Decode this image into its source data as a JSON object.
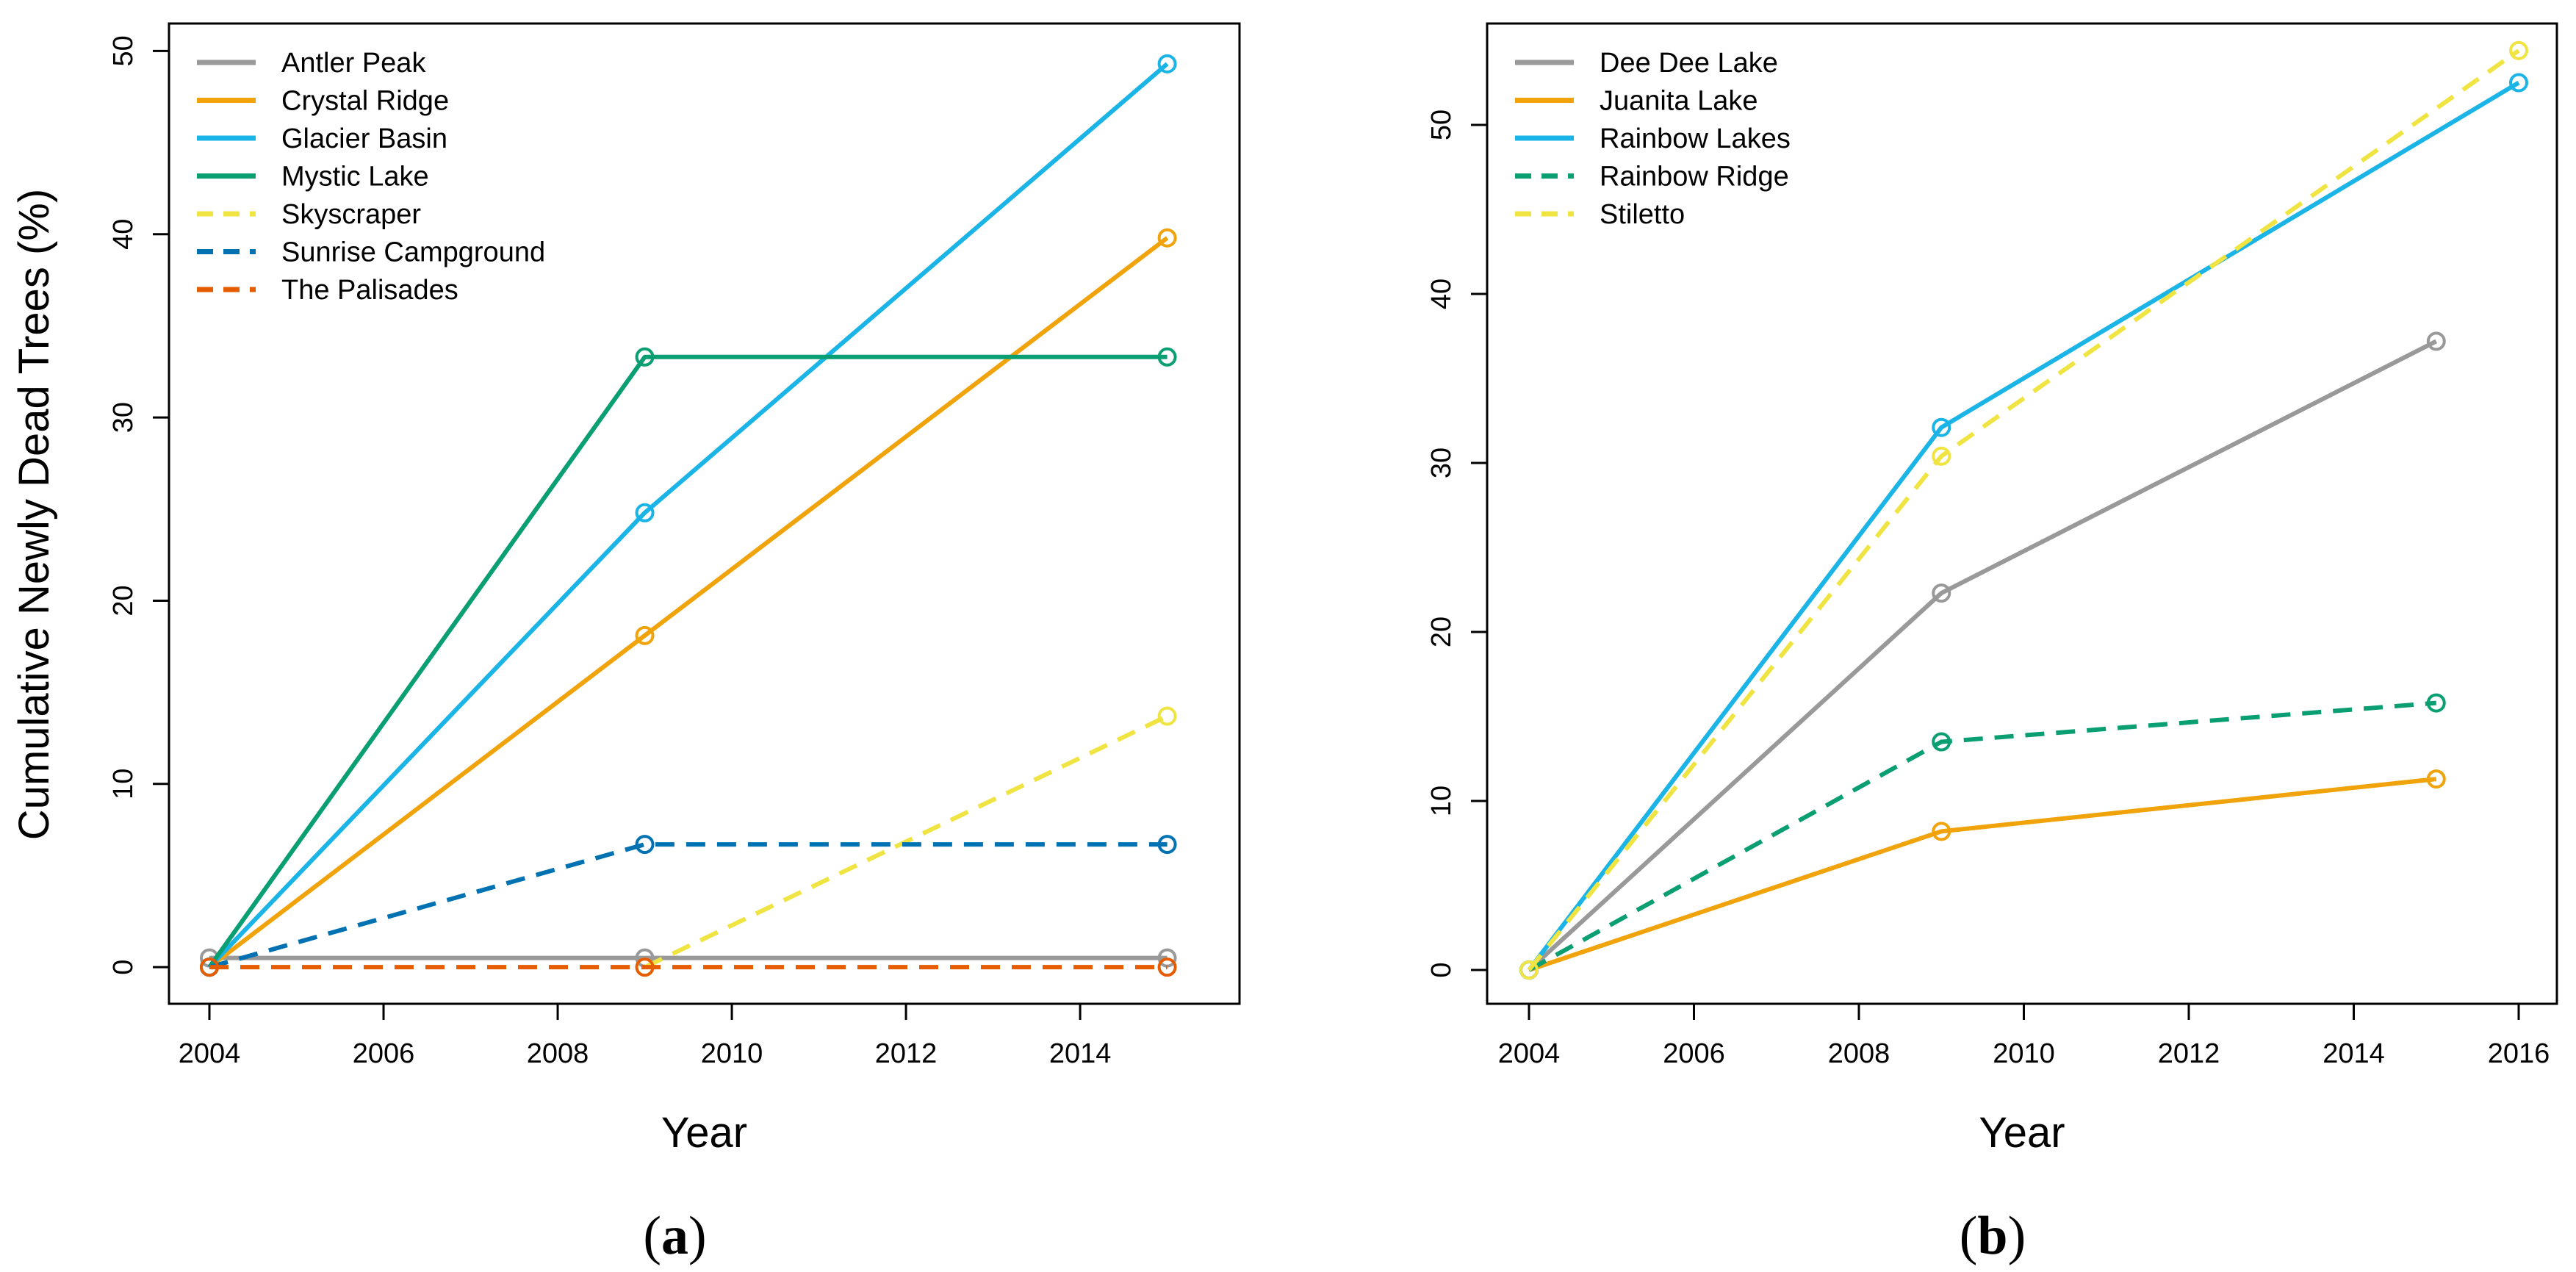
{
  "figure": {
    "ylabel_shared": "Cumulative Newly Dead Trees (%)"
  },
  "chart_data": [
    {
      "type": "line",
      "panel": "a",
      "panel_label": "(a)",
      "panel_letter": "a",
      "xlabel": "Year",
      "ylabel": "Cumulative Newly Dead Trees (%)",
      "xlim": [
        2004,
        2015.4
      ],
      "ylim": [
        -2,
        51.5
      ],
      "xticks": [
        2004,
        2006,
        2008,
        2010,
        2012,
        2014
      ],
      "yticks": [
        0,
        10,
        20,
        30,
        40,
        50
      ],
      "legend_position": "top-left",
      "series": [
        {
          "name": "Antler Peak",
          "color": "#999999",
          "dash": false,
          "x": [
            2004,
            2009,
            2015
          ],
          "y": [
            0.5,
            0.5,
            0.5
          ]
        },
        {
          "name": "Crystal Ridge",
          "color": "#F0A30A",
          "dash": false,
          "x": [
            2004,
            2009,
            2015
          ],
          "y": [
            0,
            18.1,
            39.8
          ]
        },
        {
          "name": "Glacier Basin",
          "color": "#1AB4E6",
          "dash": false,
          "x": [
            2004,
            2009,
            2015
          ],
          "y": [
            0,
            24.8,
            49.3
          ]
        },
        {
          "name": "Mystic Lake",
          "color": "#0A9E73",
          "dash": false,
          "x": [
            2004,
            2009,
            2015
          ],
          "y": [
            0,
            33.3,
            33.3
          ]
        },
        {
          "name": "Skyscraper",
          "color": "#F0E442",
          "dash": true,
          "x": [
            2009,
            2015
          ],
          "y": [
            0,
            13.7
          ]
        },
        {
          "name": "Sunrise Campground",
          "color": "#0072B2",
          "dash": true,
          "x": [
            2004,
            2009,
            2015
          ],
          "y": [
            0,
            6.7,
            6.7
          ]
        },
        {
          "name": "The Palisades",
          "color": "#E65C00",
          "dash": true,
          "x": [
            2004,
            2009,
            2015
          ],
          "y": [
            0,
            0,
            0
          ]
        }
      ]
    },
    {
      "type": "line",
      "panel": "b",
      "panel_label": "(b)",
      "panel_letter": "b",
      "xlabel": "Year",
      "ylabel": "",
      "xlim": [
        2004,
        2016
      ],
      "ylim": [
        -2,
        56
      ],
      "xticks": [
        2004,
        2006,
        2008,
        2010,
        2012,
        2014,
        2016
      ],
      "yticks": [
        0,
        10,
        20,
        30,
        40,
        50
      ],
      "legend_position": "top-left",
      "series": [
        {
          "name": "Dee Dee Lake",
          "color": "#999999",
          "dash": false,
          "x": [
            2004,
            2009,
            2015
          ],
          "y": [
            0,
            22.3,
            37.2
          ]
        },
        {
          "name": "Juanita Lake",
          "color": "#F0A30A",
          "dash": false,
          "x": [
            2004,
            2009,
            2015
          ],
          "y": [
            0,
            8.2,
            11.3
          ]
        },
        {
          "name": "Rainbow Lakes",
          "color": "#1AB4E6",
          "dash": false,
          "x": [
            2004,
            2009,
            2016
          ],
          "y": [
            0,
            32.1,
            52.5
          ]
        },
        {
          "name": "Rainbow Ridge",
          "color": "#0A9E73",
          "dash": true,
          "x": [
            2004,
            2009,
            2015
          ],
          "y": [
            0,
            13.5,
            15.8
          ]
        },
        {
          "name": "Stiletto",
          "color": "#F0E442",
          "dash": true,
          "x": [
            2004,
            2009,
            2016
          ],
          "y": [
            0,
            30.4,
            54.4
          ]
        }
      ]
    }
  ]
}
